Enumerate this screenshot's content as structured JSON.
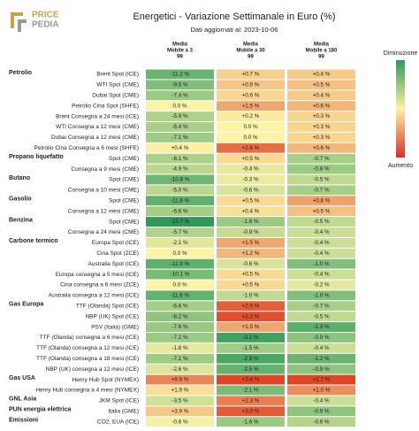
{
  "header": {
    "logo_top": "PRICE",
    "logo_bottom": "PEDIA",
    "title": "Energetici - Variazione Settimanale in Euro (%)",
    "subtitle": "Dati aggiornati al: 2023-10-06"
  },
  "columns": [
    [
      "Media",
      "Mobile a 3",
      "99"
    ],
    [
      "Media",
      "Mobile a 30",
      "99"
    ],
    [
      "Media",
      "Mobile a 180",
      "99"
    ]
  ],
  "legend": {
    "top": "Diminuzione",
    "bottom": "Aumento"
  },
  "rows": [
    {
      "group": "Petrolio",
      "name": "Brent Spot (ICE)",
      "cells": [
        "-11.2 %",
        "+0.7 %",
        "+0.4 %"
      ]
    },
    {
      "name": "WTI Spot (CME)",
      "cells": [
        "-9.5 %",
        "+0.9 %",
        "+0.5 %"
      ]
    },
    {
      "name": "Dubai Spot (CME)",
      "cells": [
        "-7.4 %",
        "+0.6 %",
        "+0.4 %"
      ]
    },
    {
      "name": "Petrolio Cina Spot (SHFE)",
      "cells": [
        "0.0 %",
        "+1.5 %",
        "+0.6 %"
      ]
    },
    {
      "name": "Brent Consegna a 24 mesi (ICE)",
      "cells": [
        "-5.9 %",
        "+0.2 %",
        "+0.3 %"
      ]
    },
    {
      "name": "WTI Consegna a 12 mesi (CME)",
      "cells": [
        "-6.4 %",
        "0.0 %",
        "+0.3 %"
      ]
    },
    {
      "name": "Dubai Consegna a 12 mesi (CME)",
      "cells": [
        "-7.1 %",
        "0.0 %",
        "+0.3 %"
      ]
    },
    {
      "name": "Petrolio Cina Consegna a 6 mesi (SHFE)",
      "cells": [
        "+0.4 %",
        "+2.6 %",
        "+0.6 %"
      ]
    },
    {
      "group": "Propano liquefatto",
      "name": "Spot (CME)",
      "cells": [
        "-6.1 %",
        "+0.5 %",
        "-0.7 %"
      ]
    },
    {
      "name": "Consegna a 9 mesi (CME)",
      "cells": [
        "-4.9 %",
        "-0.4 %",
        "-0.8 %"
      ]
    },
    {
      "group": "Butano",
      "name": "Spot (CME)",
      "cells": [
        "-10.8 %",
        "-0.3 %",
        "-0.5 %"
      ]
    },
    {
      "name": "Consegna a 10 mesi (CME)",
      "cells": [
        "-5.0 %",
        "-0.6 %",
        "-0.7 %"
      ]
    },
    {
      "group": "Gasolio",
      "name": "Spot (CME)",
      "cells": [
        "-11.8 %",
        "+0.5 %",
        "+0.8 %"
      ]
    },
    {
      "name": "Consegna a 12 mesi (CME)",
      "cells": [
        "-6.6 %",
        "+0.4 %",
        "+0.5 %"
      ]
    },
    {
      "group": "Benzina",
      "name": "Spot (CME)",
      "cells": [
        "-15.7 %",
        "-1.6 %",
        "-0.5 %"
      ]
    },
    {
      "name": "Consegna a 24 mesi (CME)",
      "cells": [
        "-5.7 %",
        "-0.9 %",
        "-0.4 %"
      ]
    },
    {
      "group": "Carbone termico",
      "name": "Europa Spot (ICE)",
      "cells": [
        "-2.1 %",
        "+1.5 %",
        "-0.4 %"
      ]
    },
    {
      "name": "Cina Spot (ZCE)",
      "cells": [
        "0.0 %",
        "+1.2 %",
        "-0.4 %"
      ]
    },
    {
      "name": "Australia Spot (ICE)",
      "cells": [
        "-11.9 %",
        "-0.6 %",
        "-1.0 %"
      ]
    },
    {
      "name": "Europa consegna a 5 mesi (ICE)",
      "cells": [
        "-10.1 %",
        "+0.5 %",
        "-0.4 %"
      ]
    },
    {
      "name": "Cina consegna a 6 mesi (ZCE)",
      "cells": [
        "0.0 %",
        "+0.5 %",
        "-0.2 %"
      ]
    },
    {
      "name": "Australia consegna a 12 mesi (ICE)",
      "cells": [
        "-11.6 %",
        "-1.0 %",
        "-1.0 %"
      ]
    },
    {
      "group": "Gas Europa",
      "name": "TTF (Olanda) Spot (ICE)",
      "cells": [
        "-6.6 %",
        "+2.9 %",
        "-0.7 %"
      ]
    },
    {
      "name": "NBP (UK) Spot (ICE)",
      "cells": [
        "-8.2 %",
        "+3.2 %",
        "-0.5 %"
      ]
    },
    {
      "name": "PSV (Italia) (GME)",
      "cells": [
        "-7.6 %",
        "+1.5 %",
        "-1.3 %"
      ]
    },
    {
      "name": "TTF (Olanda) consegna a 6 mesi (ICE)",
      "cells": [
        "-7.2 %",
        "-3.1 %",
        "-0.9 %"
      ]
    },
    {
      "name": "TTF (Olanda) consegna a 12 mesi (ICE)",
      "cells": [
        "-1.8 %",
        "-1.5 %",
        "-0.4 %"
      ]
    },
    {
      "name": "TTF (Olanda) consegna a 18 mesi (ICE)",
      "cells": [
        "-7.1 %",
        "-2.9 %",
        "-1.2 %"
      ]
    },
    {
      "name": "NBP (UK) consegna a 12 mesi (ICE)",
      "cells": [
        "-2.6 %",
        "-2.5 %",
        "-0.9 %"
      ]
    },
    {
      "group": "Gas USA",
      "name": "Henry Hub Spot (NYMEX)",
      "cells": [
        "+9.9 %",
        "+3.4 %",
        "+1.7 %"
      ]
    },
    {
      "name": "Henry Hub consegna a 4 mesi (NYMEX)",
      "cells": [
        "+1.9 %",
        "-2.1 %",
        "+1.0 %"
      ]
    },
    {
      "group": "GNL Asia",
      "name": "JKM Spot (ICE)",
      "cells": [
        "-3.5 %",
        "+2.3 %",
        "-0.4 %"
      ]
    },
    {
      "group": "PUN energia elettrica",
      "name": "Italia (GME)",
      "cells": [
        "+3.9 %",
        "+3.0 %",
        "-0.9 %"
      ]
    },
    {
      "group": "Emissioni",
      "name": "CO2, EUA (ICE)",
      "cells": [
        "-0.6 %",
        "-1.6 %",
        "-0.6 %"
      ]
    }
  ]
}
